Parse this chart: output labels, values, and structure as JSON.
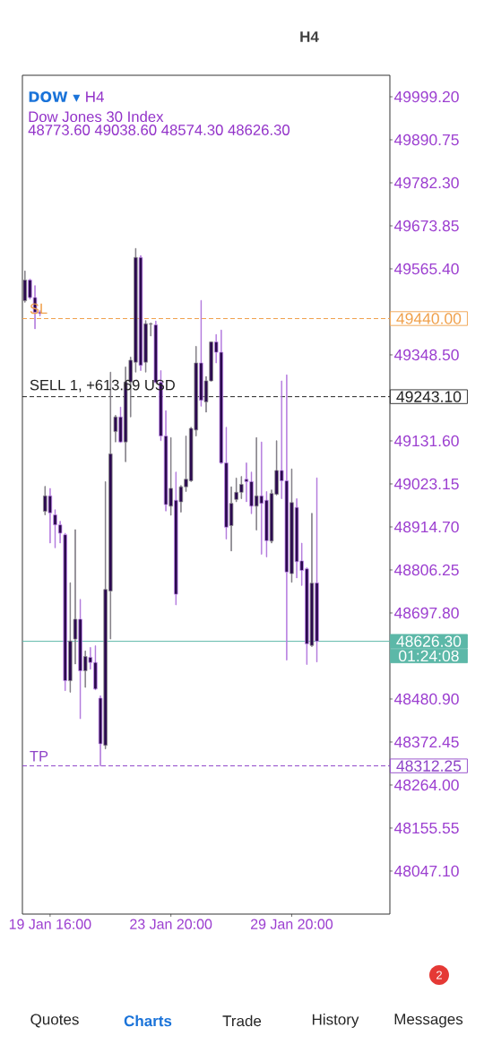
{
  "chart_data": {
    "type": "candlestick",
    "title": "DOW ▾",
    "subtitle": "H4",
    "categories": [
      null,
      null,
      null,
      null,
      null,
      "19 Jan 16:00",
      null,
      null,
      null,
      null,
      null,
      null,
      null,
      null,
      null,
      null,
      null,
      null,
      null,
      null,
      null,
      null,
      null,
      null,
      null,
      null,
      null,
      null,
      null,
      "23 Jan 20:00",
      null,
      null,
      null,
      null,
      null,
      null,
      null,
      null,
      null,
      null,
      null,
      null,
      null,
      null,
      null,
      null,
      null,
      null,
      null,
      null,
      null,
      null,
      null,
      "29 Jan 20:00",
      null,
      null,
      null,
      null,
      null,
      null,
      null,
      null,
      null,
      null,
      null,
      null,
      null,
      null,
      null,
      null,
      null,
      null,
      null
    ],
    "ohlc": [
      [
        49485,
        49560,
        49481,
        49537
      ],
      [
        49537,
        49540,
        49489,
        49493
      ],
      [
        49493,
        49523,
        49414,
        49456
      ],
      [
        49456,
        49460,
        49447,
        49453
      ],
      [
        48954,
        49017,
        48945,
        48993
      ],
      [
        48993,
        49012,
        48874,
        48950
      ],
      [
        48945,
        48958,
        48862,
        48920
      ],
      [
        48920,
        48929,
        48874,
        48899
      ],
      [
        48895,
        48899,
        48502,
        48527
      ],
      [
        48527,
        48774,
        48498,
        48627
      ],
      [
        48632,
        48908,
        48569,
        48682
      ],
      [
        48682,
        48732,
        48431,
        48552
      ],
      [
        48552,
        48602,
        48510,
        48588
      ],
      [
        48586,
        48611,
        48556,
        48573
      ],
      [
        48573,
        48615,
        48504,
        48506
      ],
      [
        48483,
        48489,
        48312,
        48368
      ],
      [
        48364,
        49029,
        48355,
        48757
      ],
      [
        48753,
        49305,
        48632,
        49099
      ],
      [
        49155,
        49196,
        49129,
        49192
      ],
      [
        49192,
        49217,
        49127,
        49129
      ],
      [
        49129,
        49318,
        49079,
        49280
      ],
      [
        49280,
        49343,
        49192,
        49335
      ],
      [
        49330,
        49617,
        49305,
        49594
      ],
      [
        49594,
        49599,
        49309,
        49322
      ],
      [
        49330,
        49435,
        49305,
        49427
      ],
      [
        49426,
        49429,
        49396,
        49427
      ],
      [
        49424,
        49434,
        49278,
        49279
      ],
      [
        49279,
        49309,
        49132,
        49144
      ],
      [
        49144,
        49208,
        48955,
        48971
      ],
      [
        48967,
        49140,
        48944,
        49012
      ],
      [
        48982,
        49053,
        48718,
        48745
      ],
      [
        48978,
        49019,
        48952,
        49016
      ],
      [
        49016,
        49144,
        49004,
        49035
      ],
      [
        49031,
        49166,
        49029,
        49163
      ],
      [
        49159,
        49370,
        49144,
        49328
      ],
      [
        49328,
        49486,
        49219,
        49234
      ],
      [
        49230,
        49294,
        49204,
        49283
      ],
      [
        49283,
        49382,
        49282,
        49381
      ],
      [
        49381,
        49400,
        49328,
        49355
      ],
      [
        49355,
        49411,
        49074,
        49076
      ],
      [
        49076,
        49166,
        48884,
        48914
      ],
      [
        48918,
        49016,
        48854,
        48974
      ],
      [
        48984,
        49038,
        48978,
        49002
      ],
      [
        49002,
        49042,
        48986,
        49022
      ],
      [
        49035,
        49076,
        48978,
        49029
      ],
      [
        49029,
        49053,
        48948,
        48967
      ],
      [
        48967,
        49140,
        48907,
        48993
      ],
      [
        48993,
        49129,
        48846,
        48974
      ],
      [
        48982,
        49004,
        48839,
        48880
      ],
      [
        48879,
        49008,
        48874,
        48999
      ],
      [
        48997,
        49132,
        48995,
        49057
      ],
      [
        49057,
        49283,
        48986,
        49031
      ],
      [
        49031,
        49298,
        48579,
        48801
      ],
      [
        48797,
        49061,
        48775,
        48976
      ],
      [
        48964,
        48986,
        48786,
        48827
      ],
      [
        48829,
        48874,
        48767,
        48805
      ],
      [
        48809,
        48812,
        48568,
        48620
      ],
      [
        48616,
        48949,
        48613,
        48773
      ],
      [
        48773.6,
        49038.6,
        48574.3,
        48626.3
      ],
      null,
      null,
      null,
      null,
      null,
      null,
      null,
      null,
      null,
      null,
      null,
      null,
      null,
      null
    ],
    "color": "#2b0a4f",
    "ylim": [
      47938.6,
      50053.4
    ],
    "yticks": [
      {
        "value": 49999.2,
        "label": "49999.20"
      },
      {
        "value": 49890.75,
        "label": "49890.75"
      },
      {
        "value": 49782.3,
        "label": "49782.30"
      },
      {
        "value": 49673.85,
        "label": "49673.85"
      },
      {
        "value": 49565.4,
        "label": "49565.40"
      },
      {
        "value": 49348.5,
        "label": "49348.50"
      },
      {
        "value": 49131.6,
        "label": "49131.60"
      },
      {
        "value": 49023.15,
        "label": "49023.15"
      },
      {
        "value": 48914.7,
        "label": "48914.70"
      },
      {
        "value": 48806.25,
        "label": "48806.25"
      },
      {
        "value": 48697.8,
        "label": "48697.80"
      },
      {
        "value": 48480.9,
        "label": "48480.90"
      },
      {
        "value": 48372.45,
        "label": "48372.45"
      },
      {
        "value": 48264.0,
        "label": "48264.00"
      },
      {
        "value": 48155.55,
        "label": "48155.55"
      },
      {
        "value": 48047.1,
        "label": "48047.10"
      }
    ],
    "ref_lines": [
      {
        "axis": "y",
        "value": 49440.0,
        "label": "SL",
        "color": "#f0a04b",
        "line_style": "dashed"
      },
      {
        "axis": "y",
        "value": 49243.1,
        "label": "SELL 1, +613.69 USD",
        "color": "#222222",
        "line_style": "dashed"
      },
      {
        "axis": "y",
        "value": 48626.3,
        "color": "#5cb8a8",
        "line_style": "solid"
      },
      {
        "axis": "y",
        "value": 48312.25,
        "label": "TP",
        "color": "#8e44c8",
        "line_style": "dashed"
      }
    ],
    "annotations": [
      "Dow Jones 30 Index",
      "48773.60 49038.60 48574.30 48626.30",
      "49440.00",
      "49243.10",
      "48626.30",
      "01:24:08",
      "48312.25",
      "H4",
      "Quotes",
      "Charts",
      "Trade",
      "History",
      "Messages",
      "2"
    ]
  }
}
